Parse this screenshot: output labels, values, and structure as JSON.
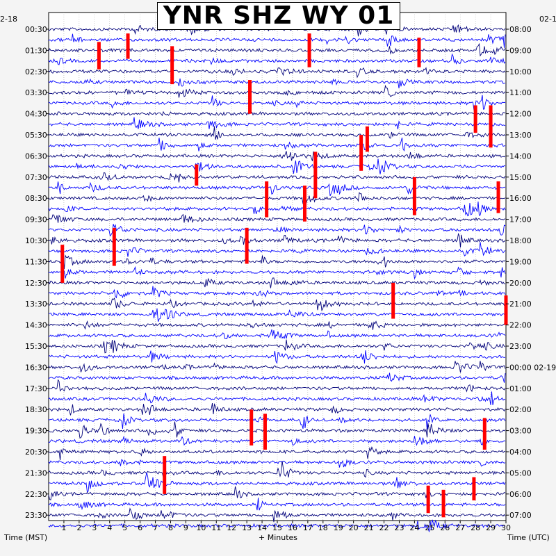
{
  "chart_data": {
    "type": "line",
    "title": "YNR SHZ WY 01",
    "left_axis_label": "Time (MST)",
    "right_axis_label": "Time (UTC)",
    "bottom_axis_label": "+ Minutes",
    "left_corner_label": "2-18",
    "right_corner_label": "02-1",
    "x_range": [
      0,
      30
    ],
    "x_tick_labels": [
      "1",
      "2",
      "3",
      "4",
      "5",
      "6",
      "7",
      "8",
      "9",
      "10",
      "11",
      "12",
      "13",
      "14",
      "15",
      "16",
      "17",
      "18",
      "19",
      "20",
      "21",
      "22",
      "23",
      "24",
      "25",
      "26",
      "27",
      "28",
      "29",
      "30"
    ],
    "left_tick_labels": [
      "00:30",
      "01:30",
      "02:30",
      "03:30",
      "04:30",
      "05:30",
      "06:30",
      "07:30",
      "08:30",
      "09:30",
      "10:30",
      "11:30",
      "12:30",
      "13:30",
      "14:30",
      "15:30",
      "16:30",
      "17:30",
      "18:30",
      "19:30",
      "20:30",
      "21:30",
      "22:30",
      "23:30"
    ],
    "right_tick_labels": [
      "08:00",
      "09:00",
      "10:00",
      "11:00",
      "12:00",
      "13:00",
      "14:00",
      "15:00",
      "16:00",
      "17:00",
      "18:00",
      "19:00",
      "20:00",
      "21:00",
      "22:00",
      "23:00",
      "00:00 02-19",
      "01:00",
      "02:00",
      "03:00",
      "04:00",
      "05:00",
      "06:00",
      "07:00"
    ],
    "traces_per_hour": 2,
    "trace_count": 48,
    "trace_colors": [
      "#00007a",
      "#0000ff"
    ],
    "clip_color": "#ff0000",
    "gridlines": true,
    "clipped_events": [
      {
        "minute": 8.1,
        "hour_row": 1.0,
        "span_rows": 3.6
      },
      {
        "minute": 17.1,
        "hour_row": 0.4,
        "span_rows": 3.2
      },
      {
        "minute": 24.3,
        "hour_row": 0.6,
        "span_rows": 2.8
      },
      {
        "minute": 5.2,
        "hour_row": 0.4,
        "span_rows": 2.4
      },
      {
        "minute": 3.3,
        "hour_row": 0.8,
        "span_rows": 2.6
      },
      {
        "minute": 13.2,
        "hour_row": 2.6,
        "span_rows": 3.2
      },
      {
        "minute": 28.0,
        "hour_row": 3.8,
        "span_rows": 2.6
      },
      {
        "minute": 29.0,
        "hour_row": 3.8,
        "span_rows": 4.0
      },
      {
        "minute": 20.5,
        "hour_row": 5.2,
        "span_rows": 3.4
      },
      {
        "minute": 20.9,
        "hour_row": 4.8,
        "span_rows": 2.4
      },
      {
        "minute": 17.5,
        "hour_row": 6.0,
        "span_rows": 4.4
      },
      {
        "minute": 16.8,
        "hour_row": 7.6,
        "span_rows": 3.4
      },
      {
        "minute": 14.3,
        "hour_row": 7.4,
        "span_rows": 3.4
      },
      {
        "minute": 9.7,
        "hour_row": 6.6,
        "span_rows": 2.0
      },
      {
        "minute": 24.0,
        "hour_row": 7.2,
        "span_rows": 3.6
      },
      {
        "minute": 29.5,
        "hour_row": 7.4,
        "span_rows": 3.0
      },
      {
        "minute": 4.3,
        "hour_row": 9.6,
        "span_rows": 3.6
      },
      {
        "minute": 0.9,
        "hour_row": 10.4,
        "span_rows": 3.6
      },
      {
        "minute": 13.0,
        "hour_row": 9.6,
        "span_rows": 3.4
      },
      {
        "minute": 22.6,
        "hour_row": 12.2,
        "span_rows": 3.4
      },
      {
        "minute": 30.0,
        "hour_row": 12.8,
        "span_rows": 2.8
      },
      {
        "minute": 13.3,
        "hour_row": 18.2,
        "span_rows": 3.4
      },
      {
        "minute": 14.2,
        "hour_row": 18.4,
        "span_rows": 3.4
      },
      {
        "minute": 28.6,
        "hour_row": 18.6,
        "span_rows": 3.0
      },
      {
        "minute": 7.6,
        "hour_row": 20.4,
        "span_rows": 3.6
      },
      {
        "minute": 24.9,
        "hour_row": 21.8,
        "span_rows": 2.6
      },
      {
        "minute": 25.9,
        "hour_row": 22.0,
        "span_rows": 2.6
      },
      {
        "minute": 27.9,
        "hour_row": 21.4,
        "span_rows": 2.2
      }
    ]
  }
}
